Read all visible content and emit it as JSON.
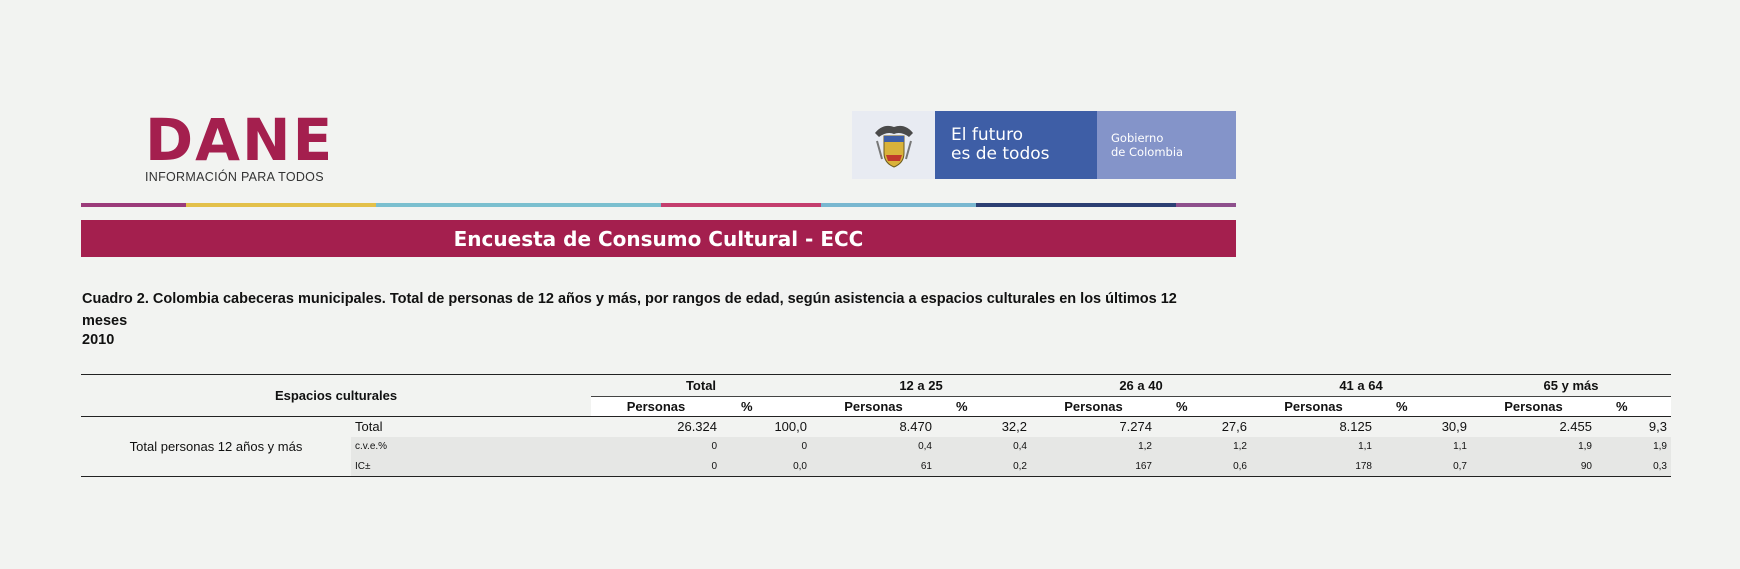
{
  "logos": {
    "dane_word": "DANE",
    "dane_tagline": "INFORMACIÓN PARA TODOS",
    "gov_line1": "El futuro",
    "gov_line2": "es de todos",
    "gov_side1": "Gobierno",
    "gov_side2": "de Colombia"
  },
  "banner": "Encuesta de Consumo Cultural - ECC",
  "caption": "Cuadro 2. Colombia cabeceras municipales. Total de personas de 12 años y más, por rangos de edad, según asistencia a espacios culturales en los últimos 12 meses",
  "year": "2010",
  "table": {
    "corner": "Espacios culturales",
    "groups": [
      "Total",
      "12 a 25",
      "26 a 40",
      "41 a 64",
      "65 y más"
    ],
    "sub_persons": "Personas",
    "sub_pct": "%",
    "row_label": "Total personas 12 años y más",
    "rows": [
      {
        "kind": "Total",
        "values": [
          "26.324",
          "100,0",
          "8.470",
          "32,2",
          "7.274",
          "27,6",
          "8.125",
          "30,9",
          "2.455",
          "9,3"
        ]
      },
      {
        "kind": "c.v.e.%",
        "values": [
          "0",
          "0",
          "0,4",
          "0,4",
          "1,2",
          "1,2",
          "1,1",
          "1,1",
          "1,9",
          "1,9"
        ]
      },
      {
        "kind": "IC±",
        "values": [
          "0",
          "0,0",
          "61",
          "0,2",
          "167",
          "0,6",
          "178",
          "0,7",
          "90",
          "0,3"
        ]
      }
    ]
  },
  "colors": {
    "brand": "#a41f4e",
    "gov_blue": "#3e5ea6",
    "gov_light": "#8494c9"
  }
}
